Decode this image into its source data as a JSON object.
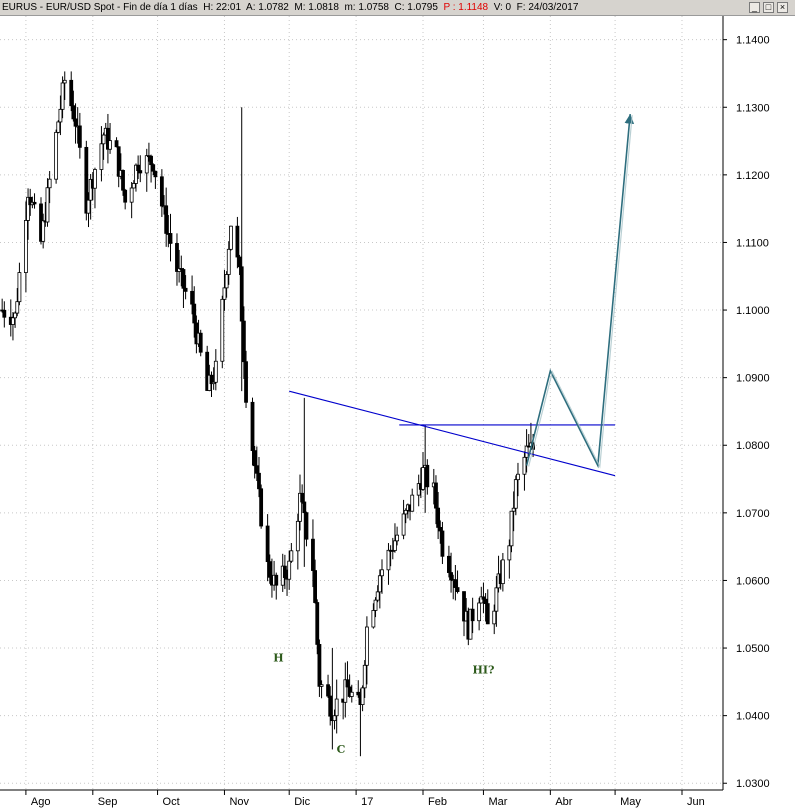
{
  "header": {
    "symbol": "EURUS",
    "description": "EUR/USD Spot",
    "period": "Fin de día 1 días",
    "high": "H: 22:01",
    "ask": "A: 1.0782",
    "mid": "M: 1.0818",
    "low": "m: 1.0758",
    "close": "C: 1.0795",
    "p": "P : 1.1148",
    "volume": "V: 0",
    "date": "F: 24/03/2017"
  },
  "colors": {
    "candle": "#000000",
    "trendline": "#0000cc",
    "projection": "#2e6e7e",
    "annotation": "#2d5a1b",
    "p_value": "#e00000"
  },
  "chart_data": {
    "type": "bar",
    "title": "",
    "ylim": [
      1.029,
      1.1435
    ],
    "y_ticks": [
      "1.1400",
      "1.1300",
      "1.1200",
      "1.1100",
      "1.1000",
      "1.0900",
      "1.0800",
      "1.0700",
      "1.0600",
      "1.0500",
      "1.0400",
      "1.0300"
    ],
    "x_ticks": [
      {
        "label": "Ago",
        "t": "2016-08-01"
      },
      {
        "label": "Sep",
        "t": "2016-09-01"
      },
      {
        "label": "Oct",
        "t": "2016-10-01"
      },
      {
        "label": "Nov",
        "t": "2016-11-01"
      },
      {
        "label": "Dic",
        "t": "2016-12-01"
      },
      {
        "label": "17",
        "t": "2017-01-01"
      },
      {
        "label": "Feb",
        "t": "2017-02-01"
      },
      {
        "label": "Mar",
        "t": "2017-03-01"
      },
      {
        "label": "Abr",
        "t": "2017-04-01"
      },
      {
        "label": "May",
        "t": "2017-05-01"
      },
      {
        "label": "Jun",
        "t": "2017-06-01"
      }
    ],
    "xlim": [
      "2016-07-20",
      "2017-06-20"
    ],
    "price_path": [
      [
        "2016-07-21",
        1.1
      ],
      [
        "2016-07-27",
        1.099
      ],
      [
        "2016-08-02",
        1.118
      ],
      [
        "2016-08-08",
        1.11
      ],
      [
        "2016-08-16",
        1.128
      ],
      [
        "2016-08-19",
        1.134
      ],
      [
        "2016-08-24",
        1.128
      ],
      [
        "2016-08-29",
        1.116
      ],
      [
        "2016-09-06",
        1.126
      ],
      [
        "2016-09-12",
        1.123
      ],
      [
        "2016-09-16",
        1.116
      ],
      [
        "2016-09-22",
        1.122
      ],
      [
        "2016-09-29",
        1.122
      ],
      [
        "2016-10-04",
        1.114
      ],
      [
        "2016-10-10",
        1.106
      ],
      [
        "2016-10-17",
        1.1
      ],
      [
        "2016-10-24",
        1.088
      ],
      [
        "2016-10-28",
        1.091
      ],
      [
        "2016-11-04",
        1.113
      ],
      [
        "2016-11-08",
        1.105
      ],
      [
        "2016-11-11",
        1.088
      ],
      [
        "2016-11-15",
        1.077
      ],
      [
        "2016-11-21",
        1.062
      ],
      [
        "2016-11-25",
        1.059
      ],
      [
        "2016-12-01",
        1.062
      ],
      [
        "2016-12-06",
        1.072
      ],
      [
        "2016-12-12",
        1.062
      ],
      [
        "2016-12-15",
        1.045
      ],
      [
        "2016-12-21",
        1.041
      ],
      [
        "2016-12-28",
        1.044
      ],
      [
        "2017-01-03",
        1.041
      ],
      [
        "2017-01-06",
        1.053
      ],
      [
        "2017-01-12",
        1.061
      ],
      [
        "2017-01-19",
        1.066
      ],
      [
        "2017-01-26",
        1.071
      ],
      [
        "2017-02-01",
        1.076
      ],
      [
        "2017-02-06",
        1.073
      ],
      [
        "2017-02-10",
        1.065
      ],
      [
        "2017-02-15",
        1.061
      ],
      [
        "2017-02-22",
        1.053
      ],
      [
        "2017-02-28",
        1.059
      ],
      [
        "2017-03-03",
        1.053
      ],
      [
        "2017-03-07",
        1.058
      ],
      [
        "2017-03-13",
        1.066
      ],
      [
        "2017-03-16",
        1.074
      ],
      [
        "2017-03-21",
        1.079
      ],
      [
        "2017-03-24",
        1.0795
      ]
    ],
    "extremes": [
      {
        "t": "2016-11-09",
        "high": 1.13,
        "low": 1.088
      },
      {
        "t": "2016-12-08",
        "high": 1.087,
        "low": 1.062
      },
      {
        "t": "2016-12-21",
        "high": 1.05,
        "low": 1.035
      },
      {
        "t": "2017-01-03",
        "high": 1.044,
        "low": 1.034
      },
      {
        "t": "2017-02-02",
        "high": 1.083,
        "low": 1.07
      }
    ],
    "trendlines": [
      {
        "kind": "neckline",
        "from": [
          "2016-12-01",
          1.088
        ],
        "to": [
          "2017-05-01",
          1.0755
        ]
      },
      {
        "kind": "horizontal",
        "from": [
          "2017-01-21",
          1.083
        ],
        "to": [
          "2017-05-01",
          1.083
        ]
      }
    ],
    "projection": [
      [
        "2017-03-21",
        1.077
      ],
      [
        "2017-04-01",
        1.091
      ],
      [
        "2017-04-23",
        1.077
      ],
      [
        "2017-05-08",
        1.129
      ]
    ],
    "annotations": [
      {
        "text": "H",
        "t": "2016-11-26",
        "y": 1.048
      },
      {
        "text": "C",
        "t": "2016-12-25",
        "y": 1.0345
      },
      {
        "text": "HI?",
        "t": "2017-03-01",
        "y": 1.0462
      }
    ]
  }
}
